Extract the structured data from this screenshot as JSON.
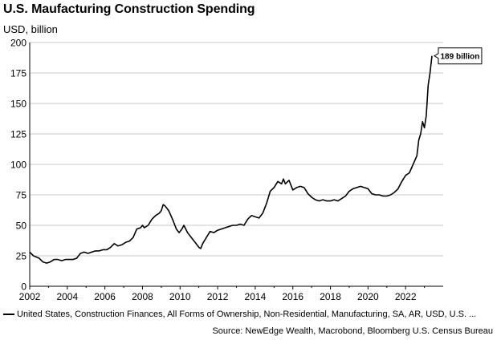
{
  "chart_data": {
    "type": "line",
    "title": "U.S. Maufacturing Construction Spending",
    "ylabel": "USD, billion",
    "xlabel": "",
    "xlim": [
      2002,
      2024
    ],
    "ylim": [
      0,
      200
    ],
    "x_ticks": [
      "2002",
      "2004",
      "2006",
      "2008",
      "2010",
      "2012",
      "2014",
      "2016",
      "2018",
      "2020",
      "2022"
    ],
    "y_ticks": [
      "0",
      "25",
      "50",
      "75",
      "100",
      "125",
      "150",
      "175",
      "200"
    ],
    "grid": true,
    "legend_position": "bottom-left",
    "series": [
      {
        "name": "United States, Construction Finances, All Forms of Ownership, Non-Residential, Manufacturing, SA, AR, USD, U.S. ...",
        "color": "#000000",
        "x": [
          2002.0,
          2002.2,
          2002.5,
          2002.7,
          2002.9,
          2003.1,
          2003.3,
          2003.5,
          2003.7,
          2003.9,
          2004.1,
          2004.3,
          2004.5,
          2004.7,
          2004.9,
          2005.1,
          2005.3,
          2005.5,
          2005.7,
          2005.9,
          2006.1,
          2006.3,
          2006.5,
          2006.7,
          2006.9,
          2007.1,
          2007.3,
          2007.5,
          2007.7,
          2007.9,
          2008.0,
          2008.1,
          2008.3,
          2008.5,
          2008.7,
          2008.9,
          2009.0,
          2009.1,
          2009.2,
          2009.4,
          2009.6,
          2009.8,
          2009.95,
          2010.1,
          2010.2,
          2010.4,
          2010.6,
          2010.8,
          2011.0,
          2011.1,
          2011.2,
          2011.4,
          2011.6,
          2011.8,
          2012.0,
          2012.2,
          2012.4,
          2012.6,
          2012.8,
          2013.0,
          2013.2,
          2013.4,
          2013.6,
          2013.8,
          2014.0,
          2014.2,
          2014.4,
          2014.6,
          2014.8,
          2015.0,
          2015.2,
          2015.4,
          2015.5,
          2015.6,
          2015.8,
          2016.0,
          2016.2,
          2016.4,
          2016.6,
          2016.8,
          2017.0,
          2017.2,
          2017.4,
          2017.6,
          2017.8,
          2018.0,
          2018.2,
          2018.4,
          2018.6,
          2018.8,
          2019.0,
          2019.2,
          2019.4,
          2019.6,
          2019.8,
          2020.0,
          2020.2,
          2020.4,
          2020.6,
          2020.8,
          2021.0,
          2021.2,
          2021.4,
          2021.6,
          2021.8,
          2022.0,
          2022.2,
          2022.4,
          2022.6,
          2022.7,
          2022.8,
          2022.9,
          2023.0,
          2023.1,
          2023.2,
          2023.3,
          2023.4
        ],
        "values": [
          28,
          25,
          23,
          20,
          19,
          20,
          22,
          22,
          21,
          22,
          22,
          22,
          23,
          27,
          28,
          27,
          28,
          29,
          29,
          30,
          30,
          32,
          35,
          33,
          34,
          36,
          37,
          40,
          47,
          48,
          50,
          48,
          50,
          55,
          58,
          60,
          62,
          67,
          66,
          62,
          55,
          47,
          44,
          47,
          50,
          44,
          40,
          36,
          32,
          31,
          35,
          40,
          45,
          44,
          46,
          47,
          48,
          49,
          50,
          50,
          51,
          50,
          55,
          58,
          57,
          56,
          60,
          68,
          78,
          81,
          86,
          84,
          88,
          84,
          87,
          79,
          81,
          82,
          81,
          76,
          73,
          71,
          70,
          71,
          70,
          70,
          71,
          70,
          72,
          74,
          78,
          80,
          81,
          82,
          81,
          80,
          76,
          75,
          75,
          74,
          74,
          75,
          77,
          80,
          86,
          91,
          93,
          100,
          107,
          120,
          125,
          135,
          130,
          140,
          165,
          175,
          189
        ]
      }
    ],
    "annotations": [
      {
        "text": "189 billion",
        "x": 2023.4,
        "y": 189
      }
    ]
  },
  "source": "Source: NewEdge Wealth, Macrobond, Bloomberg U.S. Census Bureau"
}
